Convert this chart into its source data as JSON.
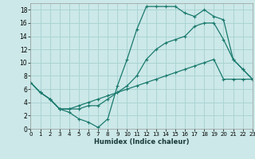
{
  "xlabel": "Humidex (Indice chaleur)",
  "bg_color": "#cce8e8",
  "grid_color": "#aad4d4",
  "line_color": "#1a7a6e",
  "xlim": [
    0,
    23
  ],
  "ylim": [
    0,
    19
  ],
  "xticks": [
    0,
    1,
    2,
    3,
    4,
    5,
    6,
    7,
    8,
    9,
    10,
    11,
    12,
    13,
    14,
    15,
    16,
    17,
    18,
    19,
    20,
    21,
    22,
    23
  ],
  "yticks": [
    0,
    2,
    4,
    6,
    8,
    10,
    12,
    14,
    16,
    18
  ],
  "line1_x": [
    0,
    1,
    2,
    3,
    4,
    5,
    6,
    7,
    8,
    9,
    10,
    11,
    12,
    13,
    14,
    15,
    16,
    17,
    18,
    19,
    20,
    21,
    22,
    23
  ],
  "line1_y": [
    7,
    5.5,
    4.5,
    3,
    2.5,
    1.5,
    1.0,
    0.2,
    1.5,
    6.5,
    10.5,
    15,
    18.5,
    18.5,
    18.5,
    18.5,
    17.5,
    17,
    18,
    17,
    16.5,
    10.5,
    9,
    7.5
  ],
  "line2_x": [
    0,
    1,
    2,
    3,
    4,
    5,
    6,
    7,
    8,
    9,
    10,
    11,
    12,
    13,
    14,
    15,
    16,
    17,
    18,
    19,
    20,
    21,
    22,
    23
  ],
  "line2_y": [
    7,
    5.5,
    4.5,
    3,
    3,
    3,
    3.5,
    3.5,
    4.5,
    5.5,
    6.5,
    8,
    10.5,
    12,
    13,
    13.5,
    14,
    15.5,
    16,
    16,
    13.5,
    10.5,
    9,
    7.5
  ],
  "line3_x": [
    0,
    1,
    2,
    3,
    4,
    5,
    6,
    7,
    8,
    9,
    10,
    11,
    12,
    13,
    14,
    15,
    16,
    17,
    18,
    19,
    20,
    21,
    22,
    23
  ],
  "line3_y": [
    7,
    5.5,
    4.5,
    3,
    3,
    3.5,
    4,
    4.5,
    5,
    5.5,
    6,
    6.5,
    7,
    7.5,
    8,
    8.5,
    9,
    9.5,
    10,
    10.5,
    7.5,
    7.5,
    7.5,
    7.5
  ]
}
